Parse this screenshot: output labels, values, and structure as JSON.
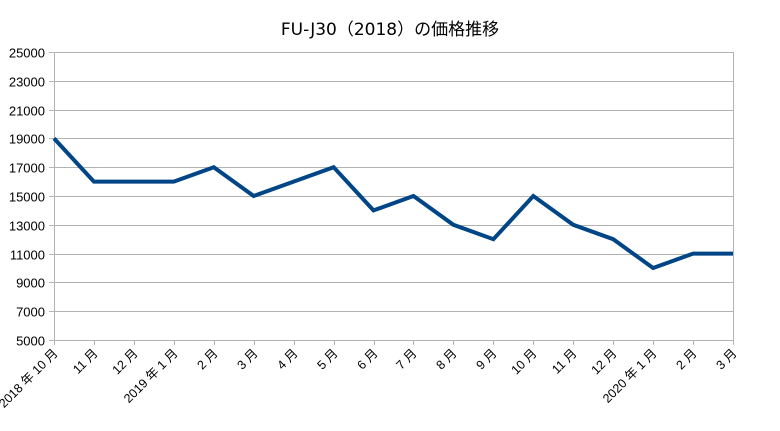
{
  "chart_data": {
    "type": "line",
    "title": "FU-J30（2018）の価格推移",
    "xlabel": "",
    "ylabel": "",
    "ylim": [
      5000,
      25000
    ],
    "yticks": [
      5000,
      7000,
      9000,
      11000,
      13000,
      15000,
      17000,
      19000,
      21000,
      23000,
      25000
    ],
    "grid": true,
    "legend": "none",
    "categories": [
      "2018年10月",
      "11月",
      "12月",
      "2019年1月",
      "2月",
      "3月",
      "4月",
      "5月",
      "6月",
      "7月",
      "8月",
      "9月",
      "10月",
      "11月",
      "12月",
      "2020年1月",
      "2月",
      "3月"
    ],
    "series": [
      {
        "name": "FU-J30（2018）",
        "color": "#004586",
        "values": [
          19000,
          16000,
          16000,
          16000,
          17000,
          15000,
          16000,
          17000,
          14000,
          15000,
          13000,
          12000,
          15000,
          13000,
          12000,
          10000,
          11000,
          11000
        ]
      }
    ]
  },
  "colors": {
    "line": "#004586",
    "grid": "#b3b3b3",
    "text": "#000000"
  }
}
